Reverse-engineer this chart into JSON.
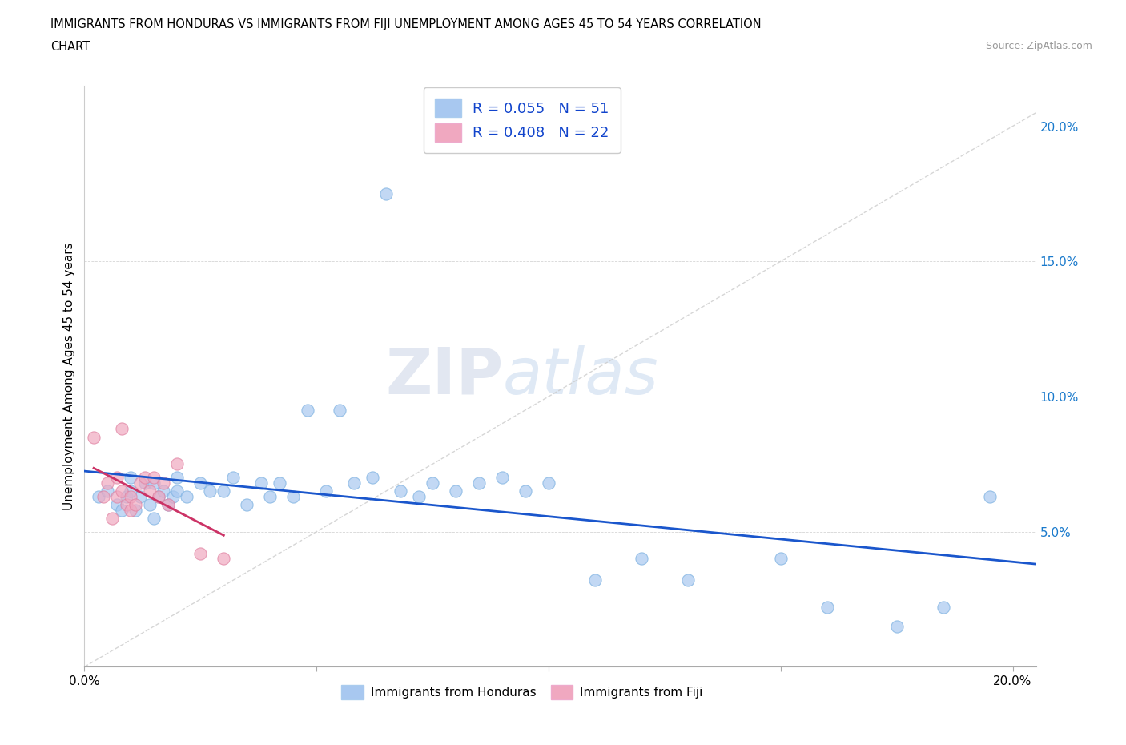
{
  "title_line1": "IMMIGRANTS FROM HONDURAS VS IMMIGRANTS FROM FIJI UNEMPLOYMENT AMONG AGES 45 TO 54 YEARS CORRELATION",
  "title_line2": "CHART",
  "source": "Source: ZipAtlas.com",
  "ylabel": "Unemployment Among Ages 45 to 54 years",
  "xlim": [
    0.0,
    0.205
  ],
  "ylim": [
    0.0,
    0.215
  ],
  "color_honduras": "#a8c8f0",
  "color_fiji": "#f0a8c0",
  "trend_color_honduras": "#1a56cc",
  "trend_color_fiji": "#cc3366",
  "trend_color_dashed": "#cccccc",
  "watermark_zip": "ZIP",
  "watermark_atlas": "atlas",
  "honduras_x": [
    0.003,
    0.005,
    0.007,
    0.008,
    0.009,
    0.01,
    0.01,
    0.011,
    0.012,
    0.013,
    0.014,
    0.015,
    0.015,
    0.016,
    0.017,
    0.018,
    0.019,
    0.02,
    0.02,
    0.022,
    0.025,
    0.027,
    0.03,
    0.032,
    0.035,
    0.038,
    0.04,
    0.042,
    0.045,
    0.048,
    0.052,
    0.055,
    0.058,
    0.062,
    0.065,
    0.068,
    0.072,
    0.075,
    0.08,
    0.085,
    0.09,
    0.095,
    0.1,
    0.11,
    0.12,
    0.13,
    0.15,
    0.16,
    0.175,
    0.185,
    0.195
  ],
  "honduras_y": [
    0.063,
    0.065,
    0.06,
    0.058,
    0.063,
    0.065,
    0.07,
    0.058,
    0.063,
    0.068,
    0.06,
    0.055,
    0.068,
    0.063,
    0.065,
    0.06,
    0.063,
    0.065,
    0.07,
    0.063,
    0.068,
    0.065,
    0.065,
    0.07,
    0.06,
    0.068,
    0.063,
    0.068,
    0.063,
    0.095,
    0.065,
    0.095,
    0.068,
    0.07,
    0.175,
    0.065,
    0.063,
    0.068,
    0.065,
    0.068,
    0.07,
    0.065,
    0.068,
    0.032,
    0.04,
    0.032,
    0.04,
    0.022,
    0.015,
    0.022,
    0.063
  ],
  "fiji_x": [
    0.002,
    0.004,
    0.005,
    0.006,
    0.007,
    0.007,
    0.008,
    0.008,
    0.009,
    0.01,
    0.01,
    0.011,
    0.012,
    0.013,
    0.014,
    0.015,
    0.016,
    0.017,
    0.018,
    0.02,
    0.025,
    0.03
  ],
  "fiji_y": [
    0.085,
    0.063,
    0.068,
    0.055,
    0.07,
    0.063,
    0.065,
    0.088,
    0.06,
    0.063,
    0.058,
    0.06,
    0.068,
    0.07,
    0.065,
    0.07,
    0.063,
    0.068,
    0.06,
    0.075,
    0.042,
    0.04
  ]
}
